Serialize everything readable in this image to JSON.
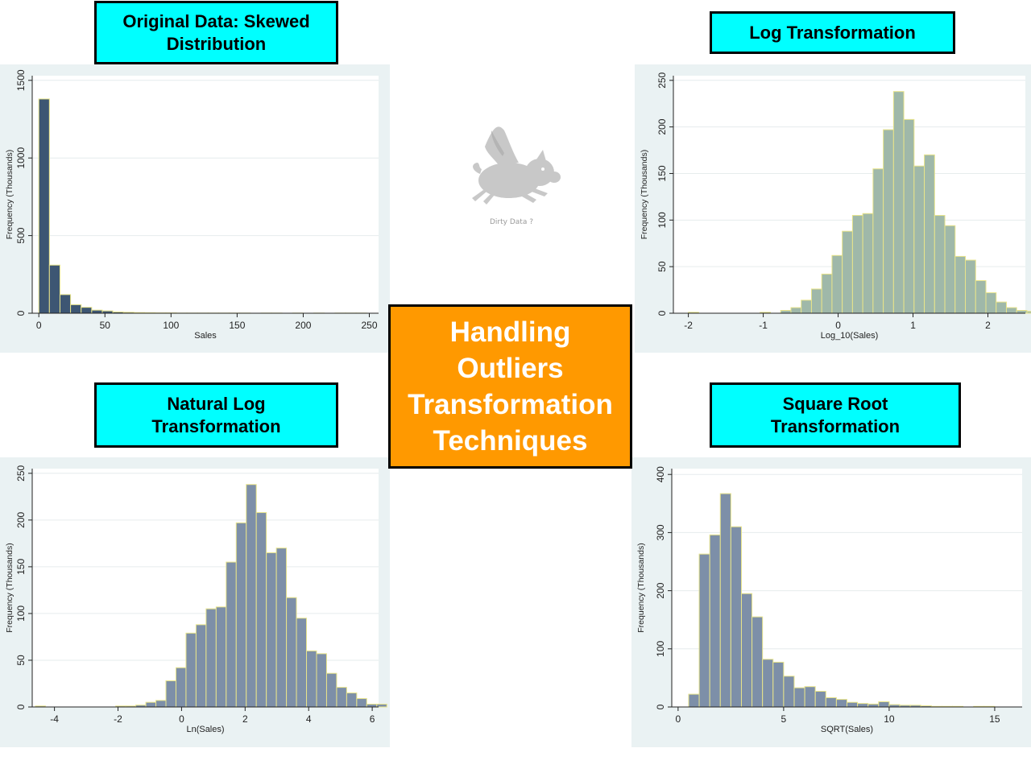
{
  "center_title": "Handling\nOutliers\nTransformation\nTechniques",
  "logo": {
    "icon": "flying-pig-icon",
    "caption": "Dirty Data ?"
  },
  "colors": {
    "label_bg": "#00ffff",
    "center_bg": "#ff9900",
    "panel_bg": "#eaf2f3",
    "bar_dark": "#3d5673",
    "bar_sage": "#9fb8a9",
    "bar_slate": "#7d8fa8",
    "bar_edge": "#e8e48a"
  },
  "chart_data": [
    {
      "label": "Original Data: Skewed\nDistribution",
      "type": "bar",
      "xlabel": "Sales",
      "ylabel": "Frequency (Thousands)",
      "xlim": [
        -5,
        257
      ],
      "ylim": [
        0,
        1530
      ],
      "xticks": [
        0,
        50,
        100,
        150,
        200,
        250
      ],
      "yticks": [
        0,
        500,
        1000,
        1500
      ],
      "bin_start": 0,
      "bin_width": 8,
      "values": [
        1380,
        310,
        120,
        55,
        38,
        20,
        15,
        8,
        6,
        4,
        3,
        2,
        2,
        1,
        1,
        1,
        1,
        1,
        1,
        1,
        0,
        1,
        1,
        0,
        1,
        0,
        1,
        0,
        1,
        1,
        1,
        0
      ]
    },
    {
      "label": "Log Transformation",
      "type": "bar",
      "xlabel": "Log_10(Sales)",
      "ylabel": "Frequency (Thousands)",
      "xlim": [
        -2.2,
        2.5
      ],
      "ylim": [
        0,
        255
      ],
      "xticks": [
        -2,
        -1,
        0,
        1,
        2
      ],
      "yticks": [
        0,
        50,
        100,
        150,
        200,
        250
      ],
      "bin_start": -2.0,
      "bin_width": 0.137,
      "values": [
        1,
        0,
        0,
        0,
        0,
        0,
        0,
        1,
        0,
        3,
        6,
        14,
        26,
        42,
        62,
        88,
        105,
        107,
        155,
        197,
        238,
        208,
        158,
        170,
        105,
        94,
        61,
        57,
        35,
        22,
        12,
        6,
        3,
        2
      ]
    },
    {
      "label": "Natural Log\nTransformation",
      "type": "bar",
      "xlabel": "Ln(Sales)",
      "ylabel": "Frequency (Thousands)",
      "xlim": [
        -4.7,
        6.2
      ],
      "ylim": [
        0,
        255
      ],
      "xticks": [
        -4,
        -2,
        0,
        2,
        4,
        6
      ],
      "yticks": [
        0,
        50,
        100,
        150,
        200,
        250
      ],
      "bin_start": -4.6,
      "bin_width": 0.316,
      "values": [
        1,
        0,
        0,
        0,
        0,
        0,
        0,
        0,
        1,
        1,
        2,
        5,
        7,
        28,
        42,
        79,
        88,
        105,
        107,
        155,
        197,
        238,
        208,
        165,
        170,
        117,
        95,
        60,
        57,
        36,
        21,
        15,
        9,
        3,
        3
      ]
    },
    {
      "label": "Square Root\nTransformation",
      "type": "bar",
      "xlabel": "SQRT(Sales)",
      "ylabel": "Frequency (Thousands)",
      "xlim": [
        -0.3,
        16.3
      ],
      "ylim": [
        0,
        410
      ],
      "xticks": [
        0,
        5,
        10,
        15
      ],
      "yticks": [
        0,
        100,
        200,
        300,
        400
      ],
      "bin_start": 0,
      "bin_width": 0.5,
      "values": [
        0,
        22,
        263,
        296,
        367,
        310,
        195,
        155,
        82,
        77,
        53,
        33,
        35,
        27,
        16,
        13,
        8,
        6,
        5,
        9,
        4,
        3,
        3,
        2,
        1,
        1,
        1,
        0,
        1,
        1,
        0,
        0
      ]
    }
  ]
}
